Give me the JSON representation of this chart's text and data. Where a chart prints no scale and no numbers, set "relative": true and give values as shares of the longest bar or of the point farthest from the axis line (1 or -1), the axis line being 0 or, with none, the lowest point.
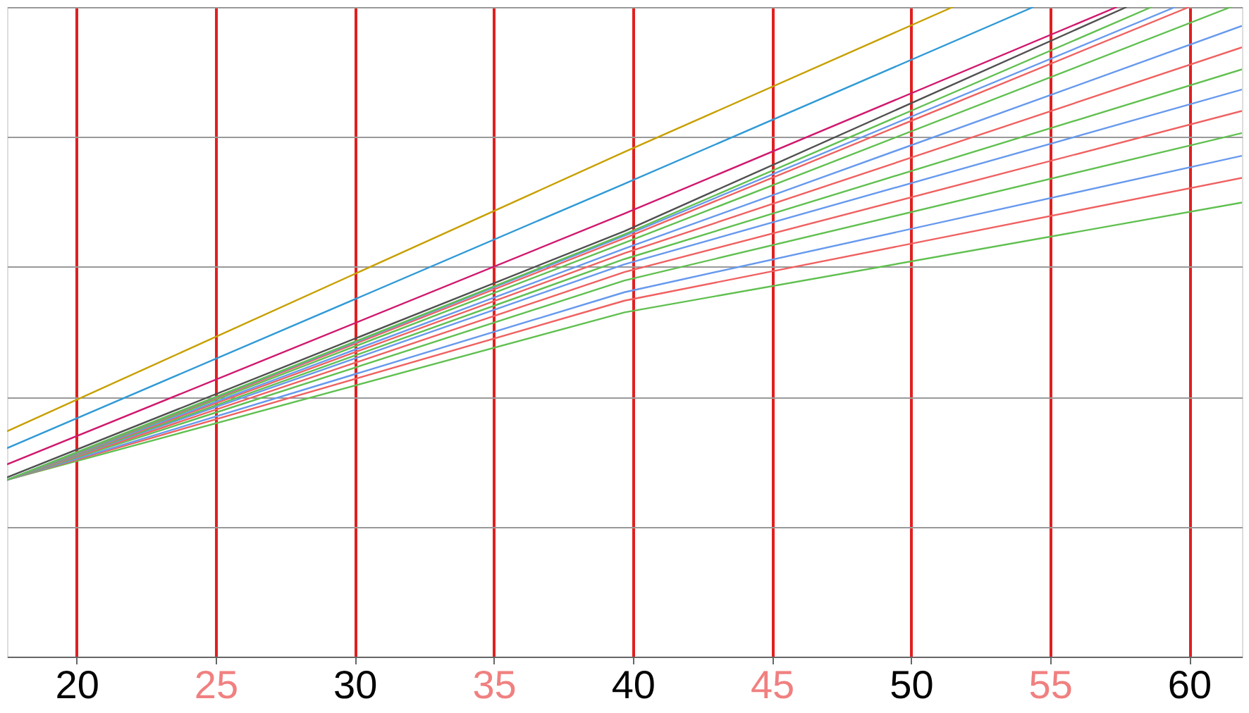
{
  "chart_data": {
    "type": "line",
    "relative": true,
    "xlim": [
      17.5,
      61.9
    ],
    "xticks": [
      20,
      25,
      30,
      35,
      40,
      45,
      50,
      55,
      60
    ],
    "grid": true,
    "line_style": "solid",
    "series": [
      {
        "color": "#60c050",
        "x": [
          17.5,
          39.7,
          61.9
        ],
        "values": [
          0.272,
          0.53,
          0.699
        ]
      },
      {
        "color": "#f06060",
        "x": [
          17.5,
          39.7,
          61.9
        ],
        "values": [
          0.272,
          0.548,
          0.737
        ]
      },
      {
        "color": "#6699ee",
        "x": [
          17.5,
          39.7,
          61.9
        ],
        "values": [
          0.272,
          0.561,
          0.771
        ]
      },
      {
        "color": "#60c050",
        "x": [
          17.5,
          39.7,
          61.9
        ],
        "values": [
          0.272,
          0.579,
          0.806
        ]
      },
      {
        "color": "#f06060",
        "x": [
          17.5,
          39.7,
          61.9
        ],
        "values": [
          0.272,
          0.592,
          0.84
        ]
      },
      {
        "color": "#6699ee",
        "x": [
          17.5,
          39.7,
          61.9
        ],
        "values": [
          0.272,
          0.604,
          0.873
        ]
      },
      {
        "color": "#60c050",
        "x": [
          17.5,
          39.7,
          61.9
        ],
        "values": [
          0.272,
          0.612,
          0.904
        ]
      },
      {
        "color": "#f06060",
        "x": [
          17.5,
          39.7,
          61.9
        ],
        "values": [
          0.272,
          0.621,
          0.938
        ]
      },
      {
        "color": "#6699ee",
        "x": [
          17.5,
          39.7,
          61.9
        ],
        "values": [
          0.272,
          0.628,
          0.971
        ]
      },
      {
        "color": "#60c050",
        "x": [
          17.5,
          39.7,
          61.5
        ],
        "values": [
          0.272,
          0.637,
          1
        ]
      },
      {
        "color": "#f06060",
        "x": [
          17.5,
          39.7,
          60.0
        ],
        "values": [
          0.272,
          0.644,
          1
        ]
      },
      {
        "color": "#6699ee",
        "x": [
          17.5,
          39.7,
          59.5
        ],
        "values": [
          0.272,
          0.648,
          1
        ]
      },
      {
        "color": "#60c050",
        "x": [
          17.5,
          39.7,
          58.65
        ],
        "values": [
          0.272,
          0.65,
          1
        ]
      },
      {
        "color": "#505050",
        "x": [
          17.5,
          39.7,
          57.75
        ],
        "values": [
          0.276,
          0.655,
          1
        ]
      },
      {
        "color": "#d0186e",
        "x": [
          17.5,
          39.7,
          57.4
        ],
        "values": [
          0.296,
          0.682,
          1
        ]
      },
      {
        "color": "#2f9ad6",
        "x": [
          17.5,
          39.7,
          54.4
        ],
        "values": [
          0.321,
          0.728,
          1
        ]
      },
      {
        "color": "#c8a000",
        "x": [
          17.5,
          39.7,
          51.5
        ],
        "values": [
          0.347,
          0.777,
          1
        ]
      }
    ]
  }
}
